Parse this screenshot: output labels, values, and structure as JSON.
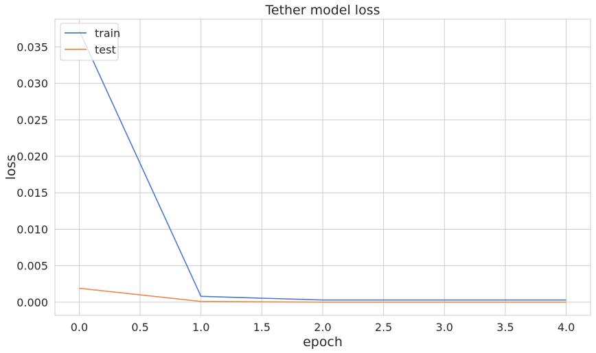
{
  "chart_data": {
    "type": "line",
    "title": "Tether model loss",
    "xlabel": "epoch",
    "ylabel": "loss",
    "x": [
      0,
      1,
      2,
      3,
      4
    ],
    "series": [
      {
        "name": "train",
        "color": "#4878d0",
        "values": [
          0.0372,
          0.0008,
          0.0003,
          0.0003,
          0.0003
        ]
      },
      {
        "name": "test",
        "color": "#ee854a",
        "values": [
          0.0019,
          0.0001,
          0.0,
          0.0,
          0.0
        ]
      }
    ],
    "xlim": [
      -0.2,
      4.2
    ],
    "ylim": [
      -0.0018,
      0.0388
    ],
    "xticks": [
      0.0,
      0.5,
      1.0,
      1.5,
      2.0,
      2.5,
      3.0,
      3.5,
      4.0
    ],
    "xtick_labels": [
      "0.0",
      "0.5",
      "1.0",
      "1.5",
      "2.0",
      "2.5",
      "3.0",
      "3.5",
      "4.0"
    ],
    "yticks": [
      0.0,
      0.005,
      0.01,
      0.015,
      0.02,
      0.025,
      0.03,
      0.035
    ],
    "ytick_labels": [
      "0.000",
      "0.005",
      "0.010",
      "0.015",
      "0.020",
      "0.025",
      "0.030",
      "0.035"
    ],
    "grid": true,
    "legend_position": "top-left",
    "grid_color": "#cccccc",
    "frame_color": "#cccccc"
  }
}
